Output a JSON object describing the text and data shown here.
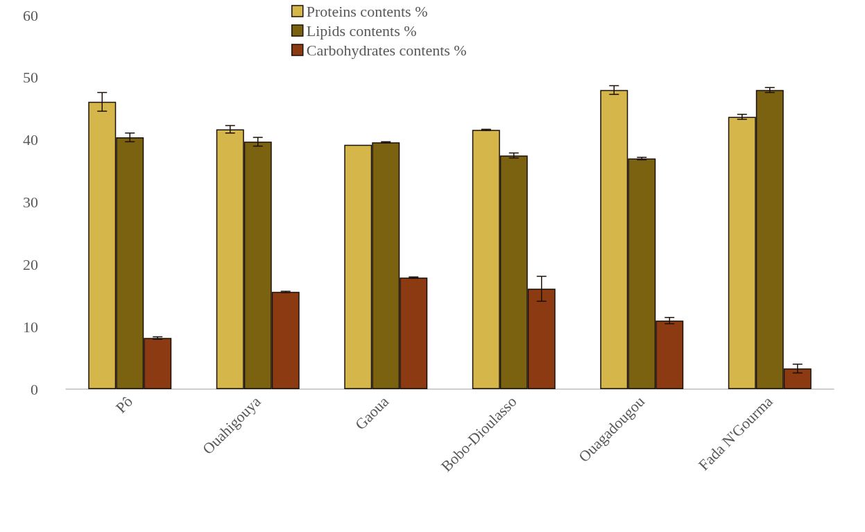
{
  "chart_data": {
    "type": "bar",
    "categories": [
      "Pô",
      "Ouahigouya",
      "Gaoua",
      "Bobo-Dioulasso",
      "Ouagadougou",
      "Fada N'Gourma"
    ],
    "series": [
      {
        "name": "Proteins contents %",
        "color": "#d4b64a",
        "values": [
          46.1,
          41.7,
          39.2,
          41.6,
          48.0,
          43.7
        ],
        "errors": [
          1.5,
          0.6,
          null,
          0.1,
          0.7,
          0.4
        ]
      },
      {
        "name": "Lipids contents %",
        "color": "#7a6210",
        "values": [
          40.4,
          39.7,
          39.6,
          37.5,
          37.0,
          48.0
        ],
        "errors": [
          0.7,
          0.7,
          0.1,
          0.4,
          0.2,
          0.4
        ]
      },
      {
        "name": "Carbohydrates contents %",
        "color": "#8b3a12",
        "values": [
          8.2,
          15.6,
          17.9,
          16.1,
          11.0,
          3.3
        ],
        "errors": [
          0.2,
          0.1,
          0.1,
          2.0,
          0.5,
          0.7
        ]
      }
    ],
    "ylim": [
      0,
      60
    ],
    "yticks": [
      0,
      10,
      20,
      30,
      40,
      50,
      60
    ],
    "grid": false,
    "legend": "top"
  }
}
